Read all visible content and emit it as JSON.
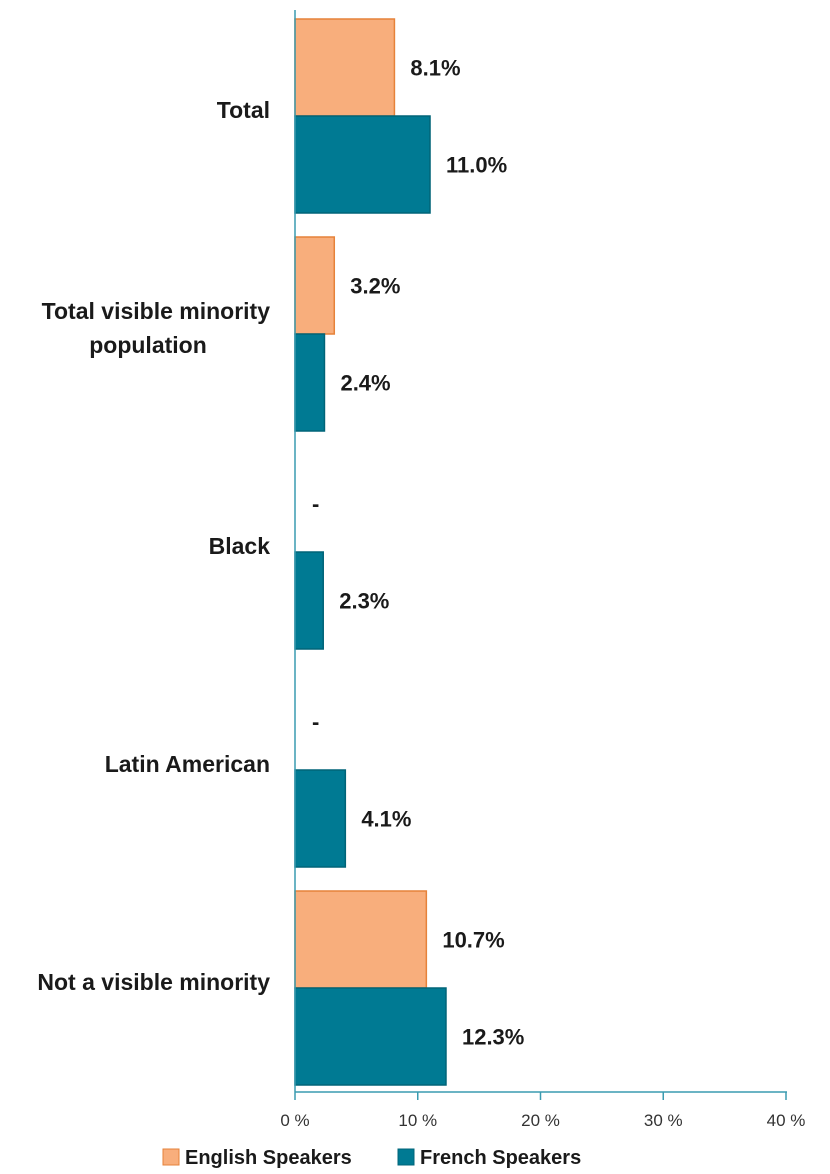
{
  "chart_data": {
    "type": "bar",
    "orientation": "horizontal",
    "categories": [
      [
        "Total"
      ],
      [
        "Total visible minority",
        "population"
      ],
      [
        "Black"
      ],
      [
        "Latin American"
      ],
      [
        "Not a visible minority"
      ]
    ],
    "series": [
      {
        "name": "English Speakers",
        "color": "#F8AE7C",
        "stroke": "#E6823A",
        "values": [
          8.1,
          3.2,
          null,
          null,
          10.7
        ],
        "labels": [
          "8.1%",
          "3.2%",
          "-",
          "-",
          "10.7%"
        ]
      },
      {
        "name": "French Speakers",
        "color": "#007A93",
        "stroke": "#006478",
        "values": [
          11.0,
          2.4,
          2.3,
          4.1,
          12.3
        ],
        "labels": [
          "11.0%",
          "2.4%",
          "2.3%",
          "4.1%",
          "12.3%"
        ]
      }
    ],
    "x_axis": {
      "range": [
        0,
        40
      ],
      "ticks": [
        0,
        10,
        20,
        30,
        40
      ],
      "tick_labels": [
        "0 %",
        "10 %",
        "20 %",
        "30 %",
        "40 %"
      ]
    },
    "gridlines": false,
    "legend_position": "bottom"
  }
}
